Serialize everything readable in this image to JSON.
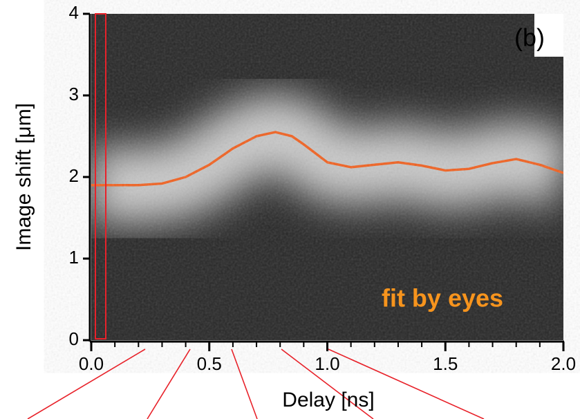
{
  "chart_data": {
    "type": "line",
    "xlabel": "Delay [ns]",
    "ylabel": "Image shift [μm]",
    "panel_label": "(b)",
    "x": [
      0,
      0.1,
      0.2,
      0.3,
      0.4,
      0.5,
      0.6,
      0.7,
      0.78,
      0.85,
      0.9,
      1.0,
      1.1,
      1.2,
      1.3,
      1.4,
      1.5,
      1.6,
      1.7,
      1.8,
      1.9,
      2.0
    ],
    "series": [
      {
        "name": "fit by eyes",
        "color": "#f2601e",
        "values": [
          1.9,
          1.9,
          1.9,
          1.92,
          2.0,
          2.15,
          2.35,
          2.5,
          2.55,
          2.5,
          2.4,
          2.18,
          2.12,
          2.15,
          2.18,
          2.14,
          2.08,
          2.1,
          2.17,
          2.22,
          2.15,
          2.05
        ]
      }
    ],
    "legend_color": "#f7941d",
    "xlim": [
      0,
      2.0
    ],
    "xticks": [
      {
        "value": 0,
        "label": "0.0"
      },
      0.5,
      {
        "value": 1,
        "label": "1.0"
      },
      1.5,
      {
        "value": 2,
        "label": "2.0"
      }
    ],
    "xminorticks": [
      0.1,
      0.2,
      0.3,
      0.4,
      0.6,
      0.7,
      0.8,
      0.9,
      1.1,
      1.2,
      1.3,
      1.4,
      1.6,
      1.7,
      1.8,
      1.9
    ],
    "ylim": [
      0,
      4
    ],
    "yticks": [
      0,
      1,
      2,
      3,
      4
    ]
  }
}
